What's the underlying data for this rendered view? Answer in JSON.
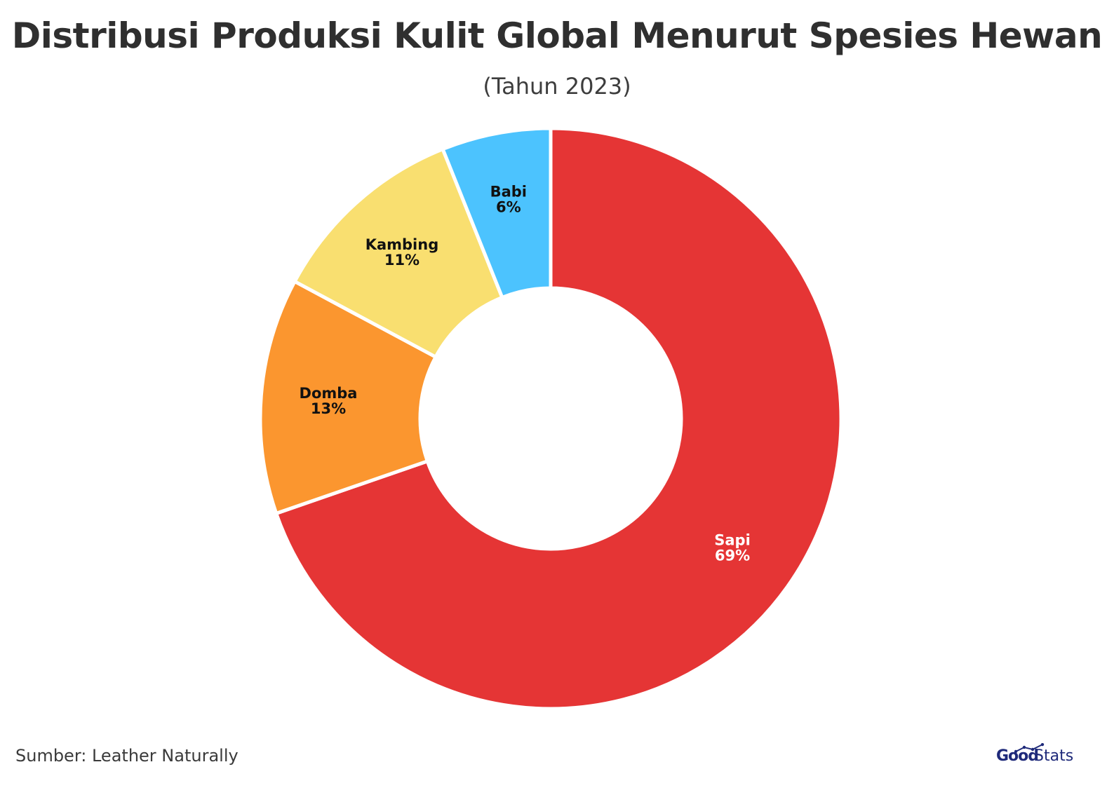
{
  "title": "Distribusi Produksi Kulit Global Menurut Spesies Hewan",
  "subtitle": "(Tahun 2023)",
  "source": "Sumber: Leather Naturally",
  "logo": {
    "part1": "Good",
    "part2": "Stats"
  },
  "chart_data": {
    "type": "pie",
    "variant": "donut",
    "title": "Distribusi Produksi Kulit Global Menurut Spesies Hewan",
    "subtitle": "(Tahun 2023)",
    "unit": "%",
    "categories": [
      "Sapi",
      "Domba",
      "Kambing",
      "Babi"
    ],
    "values": [
      69,
      13,
      11,
      6
    ],
    "colors": [
      "#e53535",
      "#fb962f",
      "#f9df70",
      "#4cc3fe"
    ],
    "label_colors": [
      "#ffffff",
      "#111111",
      "#111111",
      "#111111"
    ],
    "start_angle": "12 o'clock",
    "direction": "clockwise",
    "legend": "none"
  }
}
